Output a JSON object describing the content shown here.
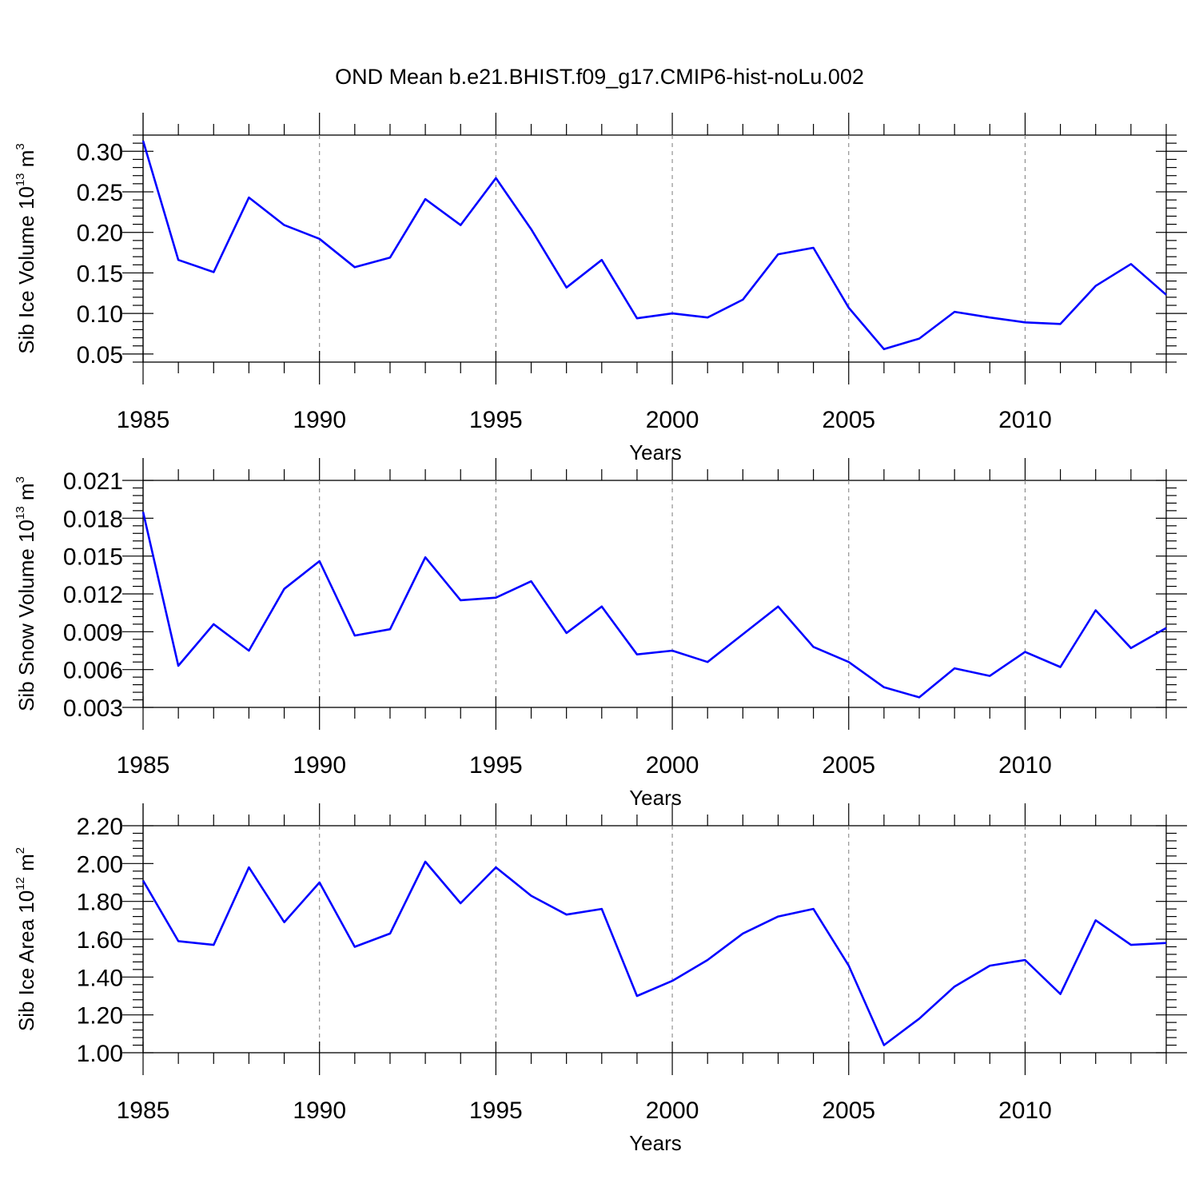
{
  "title": "OND Mean b.e21.BHIST.f09_g17.CMIP6-hist-noLu.002",
  "colors": {
    "series": "#0000ff",
    "grid": "#888888",
    "axis": "#000000"
  },
  "chart_data": [
    {
      "type": "line",
      "ylabel": {
        "text": "Sib Ice Volume 10",
        "sup1": "13",
        "mid": " m",
        "sup2": "3"
      },
      "xlabel": "Years",
      "xlim": [
        1985,
        2014
      ],
      "ylim": [
        0.04,
        0.32
      ],
      "xticks": [
        1985,
        1990,
        1995,
        2000,
        2005,
        2010
      ],
      "xtick_labels": [
        "1985",
        "1990",
        "1995",
        "2000",
        "2005",
        "2010"
      ],
      "yticks": [
        0.05,
        0.1,
        0.15,
        0.2,
        0.25,
        0.3
      ],
      "ytick_labels": [
        "0.05",
        "0.10",
        "0.15",
        "0.20",
        "0.25",
        "0.30"
      ],
      "grid": "vertical dashed at major x ticks",
      "x": [
        1985,
        1986,
        1987,
        1988,
        1989,
        1990,
        1991,
        1992,
        1993,
        1994,
        1995,
        1996,
        1997,
        1998,
        1999,
        2000,
        2001,
        2002,
        2003,
        2004,
        2005,
        2006,
        2007,
        2008,
        2009,
        2010,
        2011,
        2012,
        2013,
        2014
      ],
      "values": [
        0.313,
        0.166,
        0.151,
        0.243,
        0.209,
        0.192,
        0.157,
        0.169,
        0.241,
        0.209,
        0.267,
        0.204,
        0.132,
        0.166,
        0.094,
        0.1,
        0.095,
        0.117,
        0.173,
        0.181,
        0.107,
        0.056,
        0.069,
        0.102,
        0.095,
        0.089,
        0.087,
        0.134,
        0.161,
        0.123
      ]
    },
    {
      "type": "line",
      "ylabel": {
        "text": "Sib Snow Volume 10",
        "sup1": "13",
        "mid": " m",
        "sup2": "3"
      },
      "xlabel": "Years",
      "xlim": [
        1985,
        2014
      ],
      "ylim": [
        0.003,
        0.021
      ],
      "xticks": [
        1985,
        1990,
        1995,
        2000,
        2005,
        2010
      ],
      "xtick_labels": [
        "1985",
        "1990",
        "1995",
        "2000",
        "2005",
        "2010"
      ],
      "yticks": [
        0.003,
        0.006,
        0.009,
        0.012,
        0.015,
        0.018,
        0.021
      ],
      "ytick_labels": [
        "0.003",
        "0.006",
        "0.009",
        "0.012",
        "0.015",
        "0.018",
        "0.021"
      ],
      "grid": "vertical dashed at major x ticks",
      "x": [
        1985,
        1986,
        1987,
        1988,
        1989,
        1990,
        1991,
        1992,
        1993,
        1994,
        1995,
        1996,
        1997,
        1998,
        1999,
        2000,
        2001,
        2002,
        2003,
        2004,
        2005,
        2006,
        2007,
        2008,
        2009,
        2010,
        2011,
        2012,
        2013,
        2014
      ],
      "values": [
        0.0185,
        0.0063,
        0.0096,
        0.0075,
        0.0124,
        0.0146,
        0.0087,
        0.0092,
        0.0149,
        0.0115,
        0.0117,
        0.013,
        0.0089,
        0.011,
        0.0072,
        0.0075,
        0.0066,
        0.0088,
        0.011,
        0.0078,
        0.0066,
        0.0046,
        0.0038,
        0.0061,
        0.0055,
        0.0074,
        0.0062,
        0.0107,
        0.0077,
        0.0093
      ]
    },
    {
      "type": "line",
      "ylabel": {
        "text": "Sib Ice Area 10",
        "sup1": "12",
        "mid": " m",
        "sup2": "2"
      },
      "xlabel": "Years",
      "xlim": [
        1985,
        2014
      ],
      "ylim": [
        1.0,
        2.2
      ],
      "xticks": [
        1985,
        1990,
        1995,
        2000,
        2005,
        2010
      ],
      "xtick_labels": [
        "1985",
        "1990",
        "1995",
        "2000",
        "2005",
        "2010"
      ],
      "yticks": [
        1.0,
        1.2,
        1.4,
        1.6,
        1.8,
        2.0,
        2.2
      ],
      "ytick_labels": [
        "1.00",
        "1.20",
        "1.40",
        "1.60",
        "1.80",
        "2.00",
        "2.20"
      ],
      "grid": "vertical dashed at major x ticks",
      "x": [
        1985,
        1986,
        1987,
        1988,
        1989,
        1990,
        1991,
        1992,
        1993,
        1994,
        1995,
        1996,
        1997,
        1998,
        1999,
        2000,
        2001,
        2002,
        2003,
        2004,
        2005,
        2006,
        2007,
        2008,
        2009,
        2010,
        2011,
        2012,
        2013,
        2014
      ],
      "values": [
        1.91,
        1.59,
        1.57,
        1.98,
        1.69,
        1.9,
        1.56,
        1.63,
        2.01,
        1.79,
        1.98,
        1.83,
        1.73,
        1.76,
        1.3,
        1.38,
        1.49,
        1.63,
        1.72,
        1.76,
        1.46,
        1.04,
        1.18,
        1.35,
        1.46,
        1.49,
        1.31,
        1.7,
        1.57,
        1.58
      ]
    }
  ]
}
